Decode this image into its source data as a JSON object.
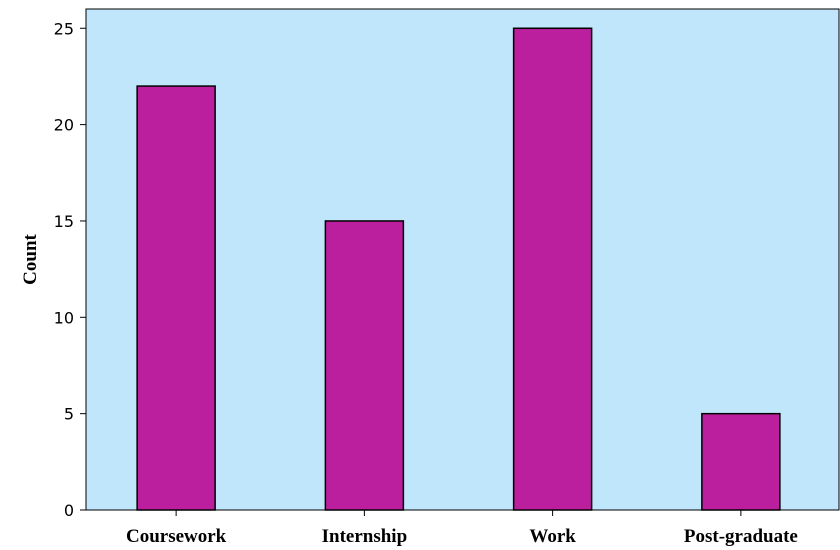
{
  "chart_data": {
    "type": "bar",
    "categories": [
      "Coursework",
      "Internship",
      "Work",
      "Post-graduate"
    ],
    "values": [
      22,
      15,
      25,
      5
    ],
    "xlabel": "",
    "ylabel": "Count",
    "ylim": [
      0,
      26
    ],
    "yticks": [
      0,
      5,
      10,
      15,
      20,
      25
    ],
    "grid": false,
    "colors": {
      "plot_background": "#C0E6FB",
      "bar_fill": "#BB1F9E",
      "bar_stroke": "#000000"
    }
  }
}
